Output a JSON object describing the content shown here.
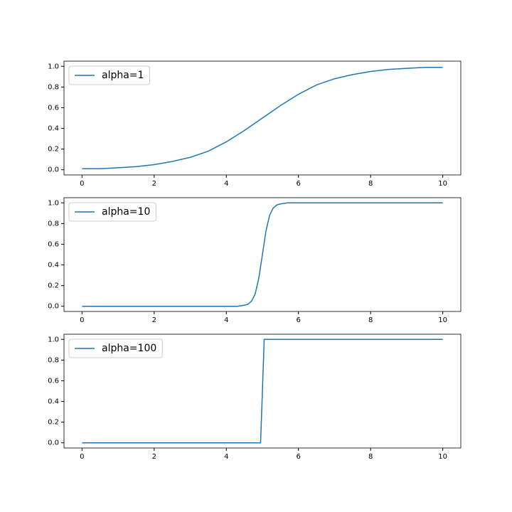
{
  "chart_data": [
    {
      "type": "line",
      "legend": "upper left",
      "x": [
        0,
        0.5,
        1,
        1.5,
        2,
        2.5,
        3,
        3.5,
        4,
        4.5,
        5,
        5.5,
        6,
        6.5,
        7,
        7.5,
        8,
        8.5,
        9,
        9.5,
        10
      ],
      "series": [
        {
          "name": "alpha=1",
          "color": "#1f77b4",
          "values": [
            0.01,
            0.01,
            0.02,
            0.03,
            0.05,
            0.08,
            0.12,
            0.18,
            0.27,
            0.38,
            0.5,
            0.62,
            0.73,
            0.82,
            0.88,
            0.92,
            0.95,
            0.97,
            0.98,
            0.99,
            0.99
          ]
        }
      ],
      "xlim": [
        -0.5,
        10.5
      ],
      "ylim": [
        -0.05,
        1.05
      ],
      "xticks": [
        0,
        2,
        4,
        6,
        8,
        10
      ],
      "yticks": [
        {
          "value": 0,
          "label": "0.0"
        },
        0.2,
        0.4,
        0.6,
        0.8,
        {
          "value": 1,
          "label": "1.0"
        }
      ]
    },
    {
      "type": "line",
      "legend": "upper left",
      "x": [
        0,
        4.3,
        4.5,
        4.6,
        4.7,
        4.8,
        4.9,
        5.0,
        5.1,
        5.2,
        5.3,
        5.4,
        5.5,
        5.7,
        10
      ],
      "series": [
        {
          "name": "alpha=10",
          "color": "#1f77b4",
          "values": [
            0,
            0,
            0.01,
            0.02,
            0.05,
            0.12,
            0.27,
            0.5,
            0.73,
            0.88,
            0.95,
            0.98,
            0.99,
            1,
            1
          ]
        }
      ],
      "xlim": [
        -0.5,
        10.5
      ],
      "ylim": [
        -0.05,
        1.05
      ],
      "xticks": [
        0,
        2,
        4,
        6,
        8,
        10
      ],
      "yticks": [
        {
          "value": 0,
          "label": "0.0"
        },
        0.2,
        0.4,
        0.6,
        0.8,
        {
          "value": 1,
          "label": "1.0"
        }
      ]
    },
    {
      "type": "line",
      "legend": "upper left",
      "x": [
        0,
        4.95,
        5.05,
        10
      ],
      "series": [
        {
          "name": "alpha=100",
          "color": "#1f77b4",
          "values": [
            0,
            0,
            1,
            1
          ]
        }
      ],
      "xlim": [
        -0.5,
        10.5
      ],
      "ylim": [
        -0.05,
        1.05
      ],
      "xticks": [
        0,
        2,
        4,
        6,
        8,
        10
      ],
      "yticks": [
        {
          "value": 0,
          "label": "0.0"
        },
        0.2,
        0.4,
        0.6,
        0.8,
        {
          "value": 1,
          "label": "1.0"
        }
      ]
    }
  ]
}
